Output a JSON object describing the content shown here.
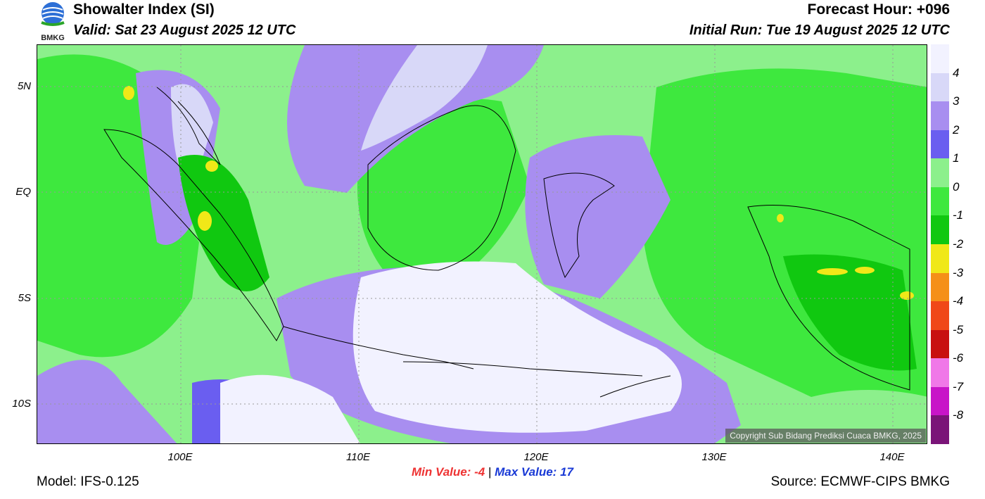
{
  "header": {
    "logo_text": "BMKG",
    "title": "Showalter Index (SI)",
    "valid": "Valid: Sat 23 August 2025 12 UTC",
    "forecast_hour": "Forecast Hour: +096",
    "initial_run": "Initial Run: Tue 19 August 2025 12 UTC"
  },
  "axes": {
    "lat_labels": [
      "5N",
      "EQ",
      "5S",
      "10S"
    ],
    "lon_labels": [
      "100E",
      "110E",
      "120E",
      "130E",
      "140E"
    ]
  },
  "colorbar": {
    "labels": [
      "4",
      "3",
      "2",
      "1",
      "0",
      "-1",
      "-2",
      "-3",
      "-4",
      "-5",
      "-6",
      "-7",
      "-8"
    ],
    "colors": [
      "#f2f2ff",
      "#d8d8f8",
      "#a88ef0",
      "#6a5ef0",
      "#8cf08c",
      "#3ee83e",
      "#10c810",
      "#f0e818",
      "#f59018",
      "#f04818",
      "#c81010",
      "#f078e8",
      "#c814c8",
      "#7a1478"
    ]
  },
  "stats": {
    "min_label": "Min Value:",
    "min_value": "-4",
    "separator": "|",
    "max_label": "Max Value:",
    "max_value": "17"
  },
  "footer": {
    "model": "Model: IFS-0.125",
    "source": "Source: ECMWF-CIPS BMKG",
    "copyright": "Copyright Sub Bidang Prediksi Cuaca BMKG, 2025"
  }
}
